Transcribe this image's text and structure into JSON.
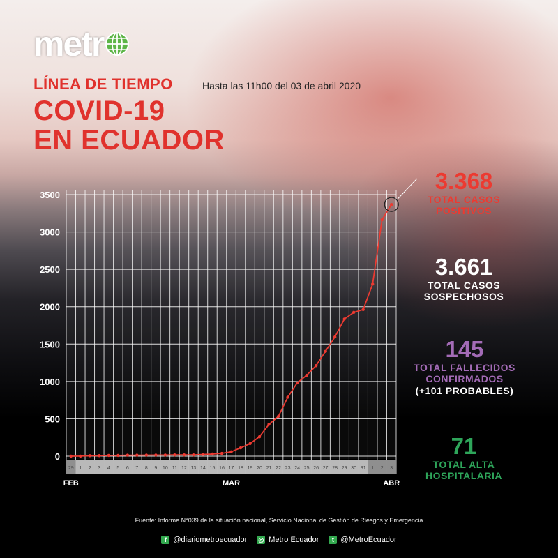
{
  "brand": {
    "logo_text": "metr"
  },
  "header": {
    "kicker": "LÍNEA DE TIEMPO",
    "dateline": "Hasta las 11h00 del 03 de abril 2020",
    "title_line1": "COVID-19",
    "title_line2": "EN ECUADOR"
  },
  "stats": {
    "positivos": {
      "value": "3.368",
      "label1": "TOTAL CASOS",
      "label2": "POSITIVOS"
    },
    "sospechosos": {
      "value": "3.661",
      "label1": "TOTAL CASOS",
      "label2": "SOSPECHOSOS"
    },
    "fallecidos": {
      "value": "145",
      "label1": "TOTAL FALLECIDOS",
      "label2": "CONFIRMADOS",
      "label3": "(+101 PROBABLES)"
    },
    "alta": {
      "value": "71",
      "label1": "TOTAL ALTA",
      "label2": "HOSPITALARIA"
    }
  },
  "footer": {
    "source": "Fuente: Informe N°039 de la situación nacional, Servicio Nacional de Gestión de Riesgos y Emergencia",
    "facebook": "@diariometroecuador",
    "instagram": "Metro Ecuador",
    "twitter": "@MetroEcuador"
  },
  "colors": {
    "accent_red": "#e0322d",
    "line_red": "#ec3a31",
    "purple": "#a36bb6",
    "green": "#2ea55a"
  },
  "icons": {
    "facebook": "f",
    "instagram": "◎",
    "twitter": "t"
  },
  "chart_data": {
    "type": "line",
    "title": "",
    "xlabel": "",
    "ylabel": "",
    "ylim": [
      0,
      3500
    ],
    "yticks": [
      "0",
      "500",
      "1000",
      "1500",
      "2000",
      "2500",
      "3000",
      "3500"
    ],
    "categories": [
      "29",
      "1",
      "2",
      "3",
      "4",
      "5",
      "6",
      "7",
      "8",
      "9",
      "10",
      "11",
      "12",
      "13",
      "14",
      "15",
      "16",
      "17",
      "18",
      "19",
      "20",
      "21",
      "22",
      "23",
      "24",
      "25",
      "26",
      "27",
      "28",
      "29",
      "30",
      "31",
      "1",
      "2",
      "3"
    ],
    "month_labels": [
      {
        "label": "FEB",
        "index": 0
      },
      {
        "label": "MAR",
        "index": 17
      },
      {
        "label": "ABR",
        "index": 34
      }
    ],
    "series": [
      {
        "values": [
          0,
          1,
          6,
          7,
          10,
          10,
          13,
          13,
          14,
          15,
          15,
          17,
          17,
          17,
          23,
          28,
          37,
          58,
          111,
          168,
          260,
          426,
          532,
          789,
          981,
          1082,
          1211,
          1403,
          1595,
          1835,
          1924,
          1962,
          2302,
          3163,
          3368
        ]
      }
    ],
    "grid": true,
    "highlight_last": true
  }
}
